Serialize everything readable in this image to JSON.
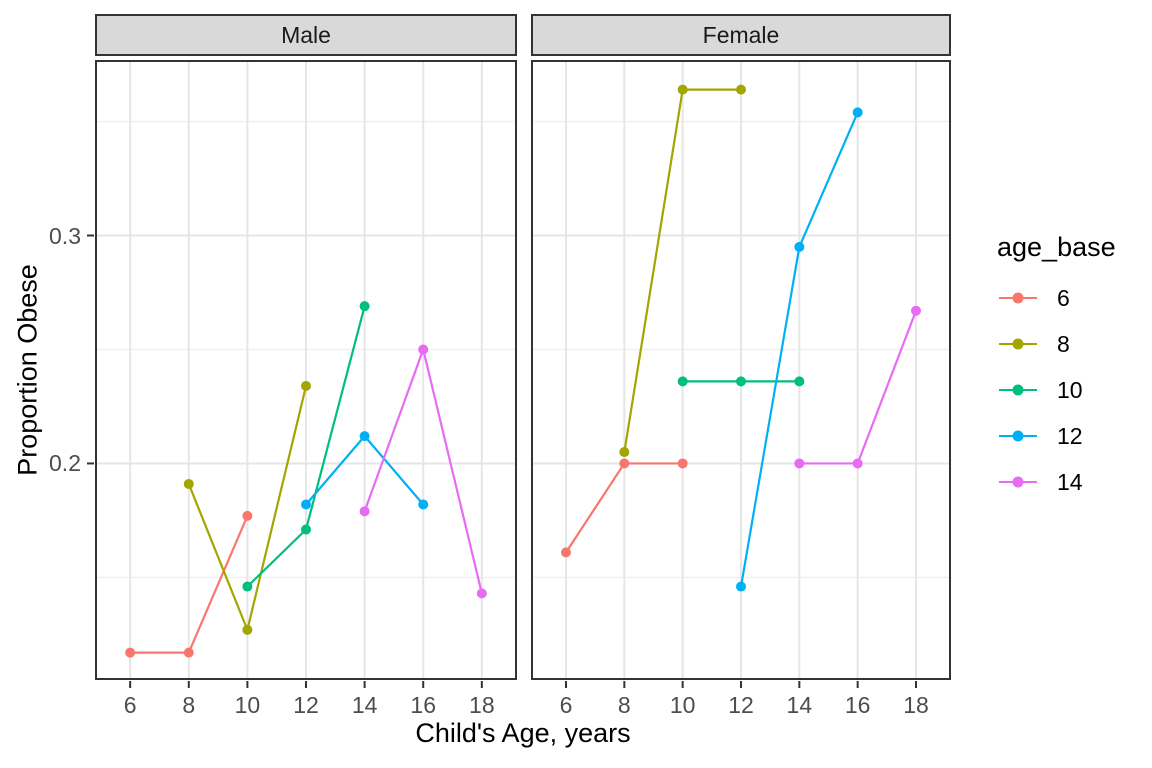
{
  "chart_data": {
    "type": "line",
    "xlabel": "Child's Age, years",
    "ylabel": "Proportion Obese",
    "xlim": [
      4.8,
      19.2
    ],
    "ylim": [
      0.105,
      0.377
    ],
    "grid": "major-and-minor-horizontal",
    "x_ticks": [
      {
        "value": 6,
        "label": "6"
      },
      {
        "value": 8,
        "label": "8"
      },
      {
        "value": 10,
        "label": "10"
      },
      {
        "value": 12,
        "label": "12"
      },
      {
        "value": 14,
        "label": "14"
      },
      {
        "value": 16,
        "label": "16"
      },
      {
        "value": 18,
        "label": "18"
      }
    ],
    "y_ticks": [
      {
        "value": 0.2,
        "label": "0.2"
      },
      {
        "value": 0.3,
        "label": "0.3"
      }
    ],
    "y_minor": [
      0.15,
      0.25,
      0.35
    ],
    "legend": {
      "title": "age_base",
      "position": "right",
      "entries": [
        {
          "label": "6",
          "color": "#F8766D"
        },
        {
          "label": "8",
          "color": "#A3A500"
        },
        {
          "label": "10",
          "color": "#00BF7D"
        },
        {
          "label": "12",
          "color": "#00B0F6"
        },
        {
          "label": "14",
          "color": "#E76BF3"
        }
      ]
    },
    "facets": [
      {
        "label": "Male",
        "series": [
          {
            "age_base": "6",
            "color": "#F8766D",
            "points": [
              [
                6,
                0.117
              ],
              [
                8,
                0.117
              ],
              [
                10,
                0.177
              ]
            ]
          },
          {
            "age_base": "8",
            "color": "#A3A500",
            "points": [
              [
                8,
                0.191
              ],
              [
                10,
                0.127
              ],
              [
                12,
                0.234
              ]
            ]
          },
          {
            "age_base": "10",
            "color": "#00BF7D",
            "points": [
              [
                10,
                0.146
              ],
              [
                12,
                0.171
              ],
              [
                14,
                0.269
              ]
            ]
          },
          {
            "age_base": "12",
            "color": "#00B0F6",
            "points": [
              [
                12,
                0.182
              ],
              [
                14,
                0.212
              ],
              [
                16,
                0.182
              ]
            ]
          },
          {
            "age_base": "14",
            "color": "#E76BF3",
            "points": [
              [
                14,
                0.179
              ],
              [
                16,
                0.25
              ],
              [
                18,
                0.143
              ]
            ]
          }
        ]
      },
      {
        "label": "Female",
        "series": [
          {
            "age_base": "6",
            "color": "#F8766D",
            "points": [
              [
                6,
                0.161
              ],
              [
                8,
                0.2
              ],
              [
                10,
                0.2
              ]
            ]
          },
          {
            "age_base": "8",
            "color": "#A3A500",
            "points": [
              [
                8,
                0.205
              ],
              [
                10,
                0.364
              ],
              [
                12,
                0.364
              ]
            ]
          },
          {
            "age_base": "10",
            "color": "#00BF7D",
            "points": [
              [
                10,
                0.236
              ],
              [
                12,
                0.236
              ],
              [
                14,
                0.236
              ]
            ]
          },
          {
            "age_base": "12",
            "color": "#00B0F6",
            "points": [
              [
                12,
                0.146
              ],
              [
                14,
                0.295
              ],
              [
                16,
                0.354
              ]
            ]
          },
          {
            "age_base": "14",
            "color": "#E76BF3",
            "points": [
              [
                14,
                0.2
              ],
              [
                16,
                0.2
              ],
              [
                18,
                0.267
              ]
            ]
          }
        ]
      }
    ],
    "colors": {
      "strip_bg": "#D9D9D9",
      "panel_border": "#333333",
      "grid_major": "#E6E6E6",
      "grid_minor": "#EFEFEF",
      "tick_mark": "#333333",
      "tick_label": "#4D4D4D"
    }
  }
}
